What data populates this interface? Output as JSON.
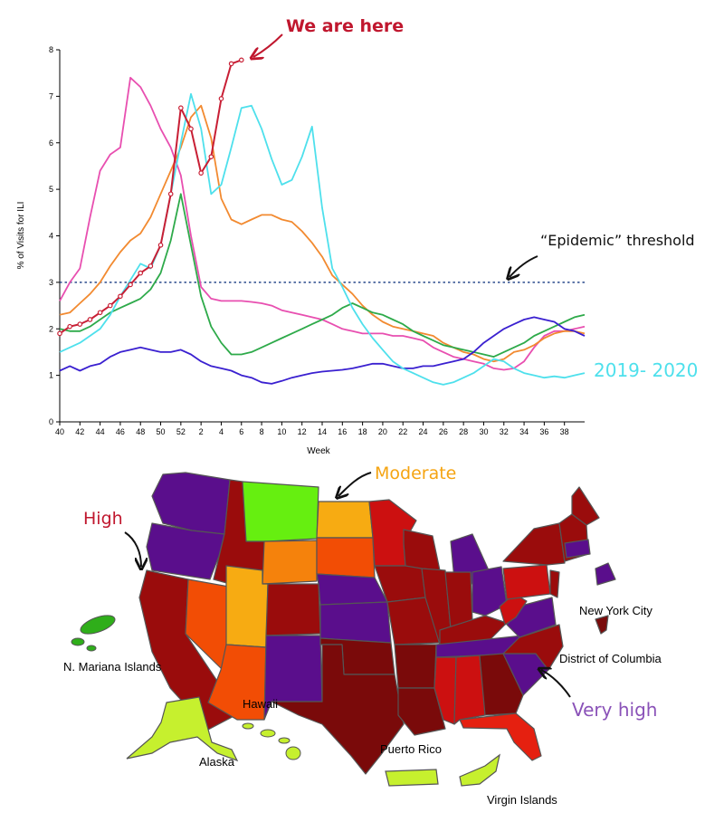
{
  "chart_data": {
    "type": "line",
    "xlabel": "Week",
    "ylabel": "% of Visits for ILI",
    "ylim": [
      0,
      8
    ],
    "yticks": [
      "0",
      "1",
      "2",
      "3",
      "4",
      "5",
      "6",
      "7",
      "8"
    ],
    "xticks": [
      "40",
      "42",
      "44",
      "46",
      "48",
      "50",
      "52",
      "2",
      "4",
      "6",
      "8",
      "10",
      "12",
      "14",
      "16",
      "18",
      "20",
      "22",
      "24",
      "26",
      "28",
      "30",
      "32",
      "34",
      "36",
      "38"
    ],
    "grid": false,
    "threshold": 3.0,
    "series": [
      {
        "name": "",
        "color": "#e84fb0",
        "values": [
          2.6,
          3.0,
          3.3,
          4.4,
          5.4,
          5.75,
          5.9,
          7.4,
          7.2,
          6.8,
          6.3,
          5.9,
          5.3,
          4.0,
          2.9,
          2.65,
          2.6,
          2.6,
          2.6,
          2.58,
          2.55,
          2.5,
          2.4,
          2.35,
          2.3,
          2.25,
          2.2,
          2.1,
          2.0,
          1.95,
          1.9,
          1.9,
          1.9,
          1.85,
          1.85,
          1.8,
          1.75,
          1.6,
          1.5,
          1.4,
          1.35,
          1.3,
          1.25,
          1.15,
          1.12,
          1.15,
          1.3,
          1.6,
          1.85,
          1.95,
          1.95,
          2.0,
          2.05
        ]
      },
      {
        "name": "",
        "color": "#f28a30",
        "values": [
          2.3,
          2.35,
          2.55,
          2.75,
          3.0,
          3.35,
          3.65,
          3.9,
          4.05,
          4.4,
          4.9,
          5.4,
          5.9,
          6.55,
          6.8,
          6.1,
          4.8,
          4.35,
          4.25,
          4.35,
          4.45,
          4.45,
          4.35,
          4.3,
          4.1,
          3.85,
          3.55,
          3.15,
          2.95,
          2.75,
          2.5,
          2.3,
          2.15,
          2.05,
          2.0,
          1.95,
          1.9,
          1.85,
          1.7,
          1.6,
          1.5,
          1.45,
          1.35,
          1.3,
          1.35,
          1.5,
          1.55,
          1.65,
          1.8,
          1.9,
          1.95,
          1.95,
          1.9
        ]
      },
      {
        "name": "",
        "color": "#2eaa4a",
        "values": [
          2.0,
          1.95,
          1.95,
          2.05,
          2.2,
          2.35,
          2.45,
          2.55,
          2.65,
          2.85,
          3.2,
          3.9,
          4.9,
          3.8,
          2.7,
          2.05,
          1.7,
          1.45,
          1.45,
          1.5,
          1.6,
          1.7,
          1.8,
          1.9,
          2.0,
          2.1,
          2.2,
          2.3,
          2.45,
          2.55,
          2.45,
          2.35,
          2.3,
          2.2,
          2.1,
          1.95,
          1.85,
          1.75,
          1.65,
          1.6,
          1.55,
          1.5,
          1.45,
          1.4,
          1.5,
          1.6,
          1.7,
          1.85,
          1.95,
          2.05,
          2.15,
          2.25,
          2.3
        ]
      },
      {
        "name": "",
        "color": "#3a20d0",
        "values": [
          1.1,
          1.2,
          1.1,
          1.2,
          1.25,
          1.4,
          1.5,
          1.55,
          1.6,
          1.55,
          1.5,
          1.5,
          1.55,
          1.45,
          1.3,
          1.2,
          1.15,
          1.1,
          1.0,
          0.95,
          0.85,
          0.82,
          0.88,
          0.95,
          1.0,
          1.05,
          1.08,
          1.1,
          1.12,
          1.15,
          1.2,
          1.25,
          1.25,
          1.2,
          1.15,
          1.15,
          1.2,
          1.2,
          1.25,
          1.3,
          1.35,
          1.5,
          1.7,
          1.85,
          2.0,
          2.1,
          2.2,
          2.25,
          2.2,
          2.15,
          2.0,
          1.95,
          1.85
        ]
      },
      {
        "name": "2019- 2020",
        "color": "#4ee0ec",
        "values": [
          1.5,
          1.6,
          1.7,
          1.85,
          2.0,
          2.3,
          2.7,
          3.05,
          3.4,
          3.3,
          3.8,
          4.9,
          6.0,
          7.05,
          6.3,
          4.9,
          5.1,
          5.9,
          6.75,
          6.8,
          6.3,
          5.65,
          5.1,
          5.2,
          5.7,
          6.35,
          4.6,
          3.3,
          2.9,
          2.45,
          2.1,
          1.8,
          1.55,
          1.3,
          1.15,
          1.05,
          0.95,
          0.85,
          0.8,
          0.85,
          0.95,
          1.05,
          1.2,
          1.35,
          1.3,
          1.15,
          1.05,
          1.0,
          0.95,
          0.98,
          0.95,
          1.0,
          1.05
        ]
      },
      {
        "name": "",
        "color": "#c81f35",
        "values": [
          1.9,
          2.05,
          2.1,
          2.2,
          2.35,
          2.5,
          2.7,
          2.95,
          3.2,
          3.35,
          3.8,
          4.9,
          6.75,
          6.3,
          5.35,
          5.7,
          6.95,
          7.7,
          7.78
        ]
      }
    ]
  },
  "annotations": {
    "we_are_here": "We are here",
    "epidemic_threshold": "“Epidemic” threshold",
    "season_label": "2019- 2020",
    "moderate": "Moderate",
    "high": "High",
    "very_high": "Very high"
  },
  "map": {
    "labels": {
      "n_mariana": "N. Mariana Islands",
      "hawaii": "Hawaii",
      "alaska": "Alaska",
      "puerto_rico": "Puerto Rico",
      "virgin_islands": "Virgin Islands",
      "nyc": "New York City",
      "dc": "District of Columbia"
    },
    "colors": {
      "very_high": "#5a0e8c",
      "high_dark": "#7a0a0a",
      "high_mid": "#9a0c0c",
      "high_light": "#cc1010",
      "orange_red": "#f24d05",
      "orange": "#f5820c",
      "moderate": "#f7ab12",
      "low_green": "#66ef10",
      "lime": "#c6f02e",
      "green": "#2fae1a"
    }
  }
}
